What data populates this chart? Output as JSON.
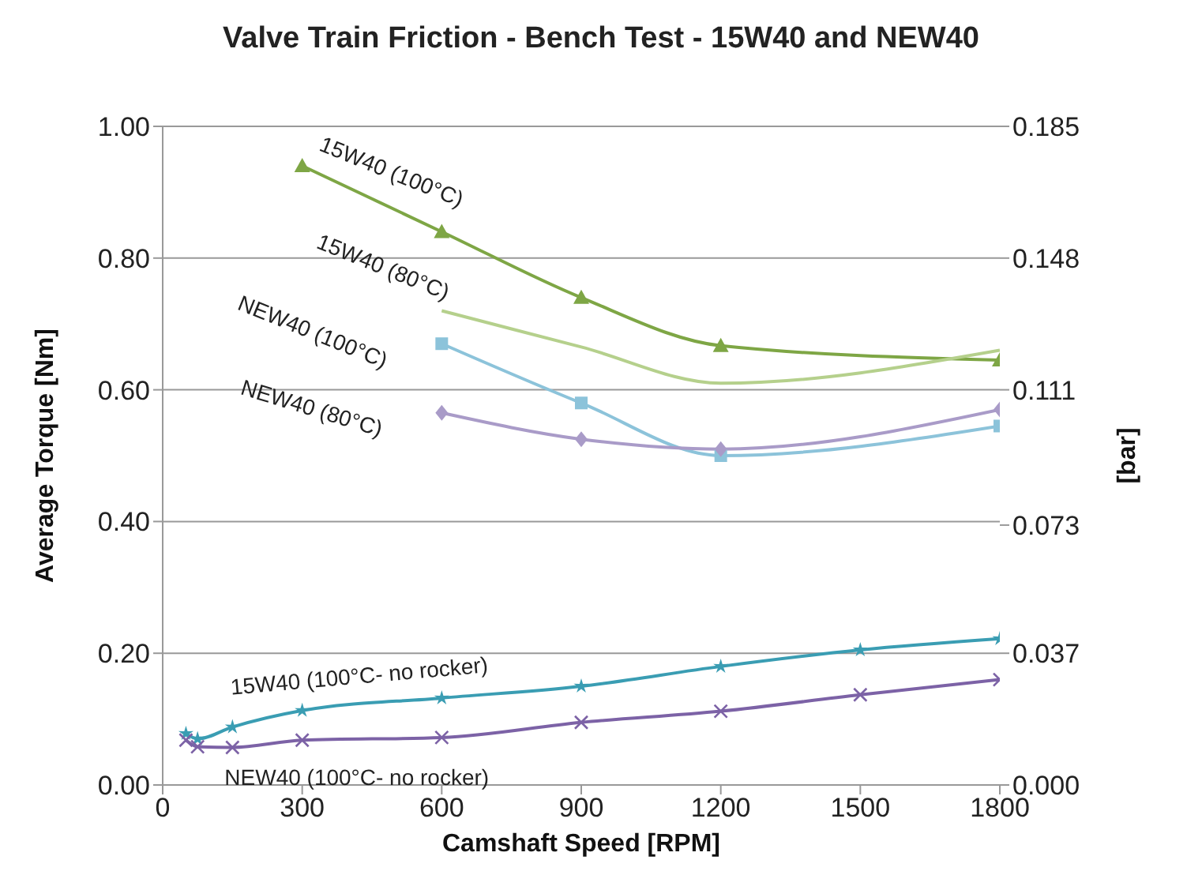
{
  "chart_data": {
    "type": "line",
    "title": "Valve Train Friction - Bench Test - 15W40 and NEW40",
    "xlabel": "Camshaft Speed [RPM]",
    "ylabel": "Average Torque [Nm]",
    "y2label": "[bar]",
    "xlim": [
      0,
      1800
    ],
    "xticks": [
      0,
      300,
      600,
      900,
      1200,
      1500,
      1800
    ],
    "ylim": [
      0,
      1
    ],
    "yticks": [
      {
        "value": 0,
        "label": "0.00"
      },
      {
        "value": 0.2,
        "label": "0.20"
      },
      {
        "value": 0.4,
        "label": "0.40"
      },
      {
        "value": 0.6,
        "label": "0.60"
      },
      {
        "value": 0.8,
        "label": "0.80"
      },
      {
        "value": 1,
        "label": "1.00"
      }
    ],
    "y2lim": [
      0,
      0.185
    ],
    "y2ticks": [
      {
        "value": 0,
        "label": "0.000"
      },
      0.037,
      0.073,
      0.111,
      0.148,
      0.185
    ],
    "grid": "y",
    "legend": false,
    "series": [
      {
        "name": "15W40 (100°C)",
        "color": "#7ea645",
        "marker": "triangle",
        "x": [
          300,
          600,
          900,
          1200,
          1800
        ],
        "values": [
          0.94,
          0.84,
          0.74,
          0.667,
          0.645
        ]
      },
      {
        "name": "15W40 (80°C)",
        "color": "#b5d08c",
        "marker": "none",
        "x": [
          600,
          900,
          1200,
          1800
        ],
        "values": [
          0.72,
          0.665,
          0.61,
          0.66
        ]
      },
      {
        "name": "NEW40 (100°C)",
        "color": "#8cc3da",
        "marker": "square",
        "x": [
          600,
          900,
          1200,
          1800
        ],
        "values": [
          0.67,
          0.58,
          0.5,
          0.545
        ]
      },
      {
        "name": "NEW40 (80°C)",
        "color": "#a99bc8",
        "marker": "diamond",
        "x": [
          600,
          900,
          1200,
          1800
        ],
        "values": [
          0.565,
          0.525,
          0.51,
          0.57
        ]
      },
      {
        "name": "15W40 (100°C- no rocker)",
        "color": "#3a9db3",
        "marker": "star",
        "x": [
          50,
          75,
          150,
          300,
          600,
          900,
          1200,
          1500,
          1800
        ],
        "values": [
          0.078,
          0.07,
          0.088,
          0.113,
          0.132,
          0.15,
          0.18,
          0.205,
          0.222
        ]
      },
      {
        "name": "NEW40 (100°C- no rocker)",
        "color": "#7c62a6",
        "marker": "cross",
        "x": [
          50,
          75,
          150,
          300,
          600,
          900,
          1200,
          1500,
          1800
        ],
        "values": [
          0.068,
          0.058,
          0.057,
          0.068,
          0.072,
          0.095,
          0.112,
          0.137,
          0.16
        ]
      }
    ]
  }
}
